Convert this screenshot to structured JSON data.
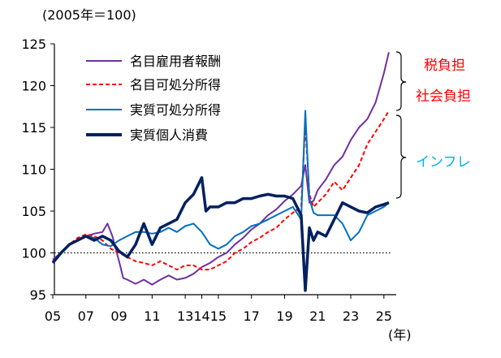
{
  "chart_data": {
    "type": "line",
    "title": "",
    "y_unit_label": "(2005年＝100)",
    "x_unit_label": "(年)",
    "xlim": [
      2005,
      2025.5
    ],
    "ylim": [
      95,
      125
    ],
    "y_ticks": [
      95,
      100,
      105,
      110,
      115,
      120,
      125
    ],
    "x_tick_labels": [
      "05",
      "07",
      "09",
      "11",
      "13",
      "14",
      "15",
      "17",
      "19",
      "21",
      "23",
      "25"
    ],
    "x_tick_positions": [
      2005,
      2007,
      2009,
      2011,
      2013,
      2014,
      2015,
      2017,
      2019,
      2021,
      2023,
      2025
    ],
    "reference_line": 100,
    "grid": false,
    "legend_position": "top-left",
    "series": [
      {
        "name": "名目雇用者報酬",
        "color": "#7030A0",
        "style": "solid",
        "x": [
          2005,
          2005.5,
          2006,
          2006.5,
          2007,
          2007.5,
          2008,
          2008.3,
          2008.6,
          2009,
          2009.25,
          2009.5,
          2010,
          2010.5,
          2011,
          2011.5,
          2012,
          2012.5,
          2013,
          2013.5,
          2014,
          2014.5,
          2015,
          2015.5,
          2016,
          2016.5,
          2017,
          2017.5,
          2018,
          2018.5,
          2019,
          2019.5,
          2020,
          2020.25,
          2020.5,
          2020.75,
          2021,
          2021.5,
          2022,
          2022.5,
          2023,
          2023.5,
          2024,
          2024.5,
          2025,
          2025.3
        ],
        "values": [
          99.2,
          100.0,
          101.0,
          101.5,
          102.0,
          102.3,
          102.5,
          103.5,
          102.0,
          99.0,
          97.0,
          96.8,
          96.3,
          96.8,
          96.2,
          96.8,
          97.3,
          96.8,
          97.0,
          97.5,
          98.3,
          98.8,
          99.5,
          100.0,
          101.0,
          101.8,
          102.8,
          103.5,
          104.5,
          105.2,
          106.2,
          107.0,
          108.0,
          110.5,
          106.0,
          106.2,
          107.5,
          108.8,
          110.5,
          111.5,
          113.5,
          115.0,
          116.0,
          118.0,
          121.5,
          124.0
        ]
      },
      {
        "name": "名目可処分所得",
        "color": "#FF0000",
        "style": "dashed",
        "x": [
          2005,
          2005.5,
          2006,
          2006.5,
          2007,
          2007.5,
          2008,
          2008.5,
          2009,
          2009.5,
          2010,
          2010.5,
          2011,
          2011.5,
          2012,
          2012.5,
          2013,
          2013.5,
          2014,
          2014.5,
          2015,
          2015.5,
          2016,
          2016.5,
          2017,
          2017.5,
          2018,
          2018.5,
          2019,
          2019.5,
          2020,
          2020.25,
          2020.5,
          2020.75,
          2021,
          2021.5,
          2022,
          2022.5,
          2023,
          2023.5,
          2024,
          2024.5,
          2025,
          2025.3
        ],
        "values": [
          99.0,
          100.0,
          101.0,
          101.8,
          102.2,
          102.0,
          101.5,
          100.5,
          100.0,
          99.5,
          99.0,
          98.8,
          98.5,
          99.0,
          98.5,
          98.0,
          98.5,
          98.5,
          98.0,
          98.0,
          98.5,
          99.0,
          100.0,
          100.5,
          101.3,
          101.8,
          102.5,
          103.0,
          104.0,
          104.8,
          105.5,
          115.5,
          107.0,
          105.5,
          106.0,
          107.0,
          108.5,
          107.5,
          109.0,
          110.5,
          113.0,
          114.5,
          116.0,
          117.0
        ]
      },
      {
        "name": "実質可処分所得",
        "color": "#0070C0",
        "style": "solid",
        "x": [
          2005,
          2005.5,
          2006,
          2006.5,
          2007,
          2007.5,
          2008,
          2008.5,
          2009,
          2009.5,
          2010,
          2010.5,
          2011,
          2011.5,
          2012,
          2012.5,
          2013,
          2013.5,
          2014,
          2014.5,
          2015,
          2015.5,
          2016,
          2016.5,
          2017,
          2017.5,
          2018,
          2018.5,
          2019,
          2019.5,
          2020,
          2020.25,
          2020.5,
          2020.75,
          2021,
          2021.5,
          2022,
          2022.5,
          2023,
          2023.5,
          2024,
          2024.5,
          2025,
          2025.3
        ],
        "values": [
          98.8,
          100.0,
          101.0,
          101.5,
          102.0,
          101.8,
          101.0,
          100.8,
          101.5,
          102.0,
          102.5,
          102.5,
          102.3,
          102.5,
          103.0,
          102.5,
          103.2,
          103.5,
          102.5,
          101.0,
          100.5,
          101.0,
          102.0,
          102.5,
          103.2,
          103.5,
          104.0,
          104.5,
          105.0,
          105.5,
          104.0,
          117.0,
          106.5,
          104.8,
          104.5,
          104.5,
          104.5,
          103.5,
          101.5,
          102.5,
          104.5,
          105.0,
          105.5,
          106.0
        ]
      },
      {
        "name": "実質個人消費",
        "color": "#002060",
        "style": "solid-thick",
        "x": [
          2005,
          2005.5,
          2006,
          2006.5,
          2007,
          2007.5,
          2008,
          2008.5,
          2009,
          2009.5,
          2010,
          2010.5,
          2011,
          2011.5,
          2012,
          2012.5,
          2013,
          2013.5,
          2014,
          2014.25,
          2014.5,
          2015,
          2015.5,
          2016,
          2016.5,
          2017,
          2017.5,
          2018,
          2018.5,
          2019,
          2019.5,
          2020,
          2020.25,
          2020.5,
          2020.75,
          2021,
          2021.5,
          2022,
          2022.5,
          2023,
          2023.5,
          2024,
          2024.5,
          2025,
          2025.3
        ],
        "values": [
          98.8,
          100.0,
          101.0,
          101.5,
          102.0,
          101.5,
          102.0,
          101.5,
          100.2,
          99.5,
          101.0,
          103.5,
          101.0,
          103.0,
          103.5,
          104.0,
          106.0,
          107.0,
          109.0,
          105.0,
          105.5,
          105.5,
          106.0,
          106.0,
          106.5,
          106.5,
          106.8,
          107.0,
          106.8,
          106.8,
          106.5,
          104.5,
          95.5,
          103.0,
          101.5,
          102.5,
          102.0,
          104.0,
          106.0,
          105.5,
          105.0,
          104.8,
          105.5,
          105.8,
          106.0
        ]
      }
    ],
    "annotations": [
      {
        "id": "tax",
        "text": "税負担",
        "color": "#FF0000"
      },
      {
        "id": "social",
        "text": "社会負担",
        "color": "#FF0000"
      },
      {
        "id": "inflation",
        "text": "インフレ",
        "color": "#00B0F0"
      }
    ]
  }
}
